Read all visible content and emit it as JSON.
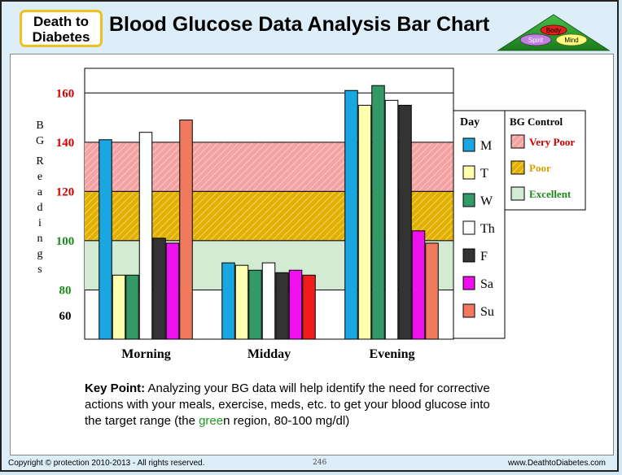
{
  "header": {
    "logo_line1": "Death to",
    "logo_line2": "Diabetes",
    "title": "Blood Glucose Data Analysis Bar Chart",
    "pyramid_labels": [
      "Body",
      "Spirit",
      "Mind"
    ]
  },
  "chart_data": {
    "type": "bar",
    "categories": [
      "Morning",
      "Midday",
      "Evening"
    ],
    "ylabel": "BG Readings",
    "ylim": [
      60,
      170
    ],
    "yticks": [
      {
        "label": "160",
        "value": 160,
        "color": "#cc0000"
      },
      {
        "label": "140",
        "value": 140,
        "color": "#cc0000"
      },
      {
        "label": "120",
        "value": 120,
        "color": "#cc0000"
      },
      {
        "label": "100",
        "value": 100,
        "color": "#1a8a1a"
      },
      {
        "label": "80",
        "value": 80,
        "color": "#1a8a1a"
      },
      {
        "label": "60",
        "value": 60,
        "color": "#000000"
      }
    ],
    "bands": [
      {
        "name": "Very Poor",
        "from": 120,
        "to": 140,
        "color": "#f4a3a3",
        "hatch": true
      },
      {
        "name": "Poor",
        "from": 100,
        "to": 120,
        "color": "#e2b100",
        "hatch": true
      },
      {
        "name": "Excellent",
        "from": 80,
        "to": 100,
        "color": "#d3ead3",
        "hatch": false
      }
    ],
    "series": [
      {
        "name": "M",
        "color": "#1aa6e0",
        "values": [
          141,
          91,
          161
        ]
      },
      {
        "name": "T",
        "color": "#ffffb0",
        "values": [
          86,
          90,
          155
        ]
      },
      {
        "name": "W",
        "color": "#339966",
        "values": [
          86,
          88,
          163
        ]
      },
      {
        "name": "Th",
        "color": "#ffffff",
        "values": [
          144,
          91,
          157
        ]
      },
      {
        "name": "F",
        "color": "#333333",
        "values": [
          101,
          87,
          155
        ]
      },
      {
        "name": "Sa",
        "color": "#ee11ee",
        "values": [
          99,
          88,
          104
        ]
      },
      {
        "name": "Su",
        "color": "#f07a5e",
        "values": [
          149,
          86,
          99
        ]
      }
    ],
    "legend_day_title": "Day",
    "legend_control_title": "BG Control",
    "legend_control_items": [
      {
        "label": "Very Poor",
        "color": "#f4a3a3",
        "text_color": "#cc0000"
      },
      {
        "label": "Poor",
        "color": "#e2b100",
        "text_color": "#d4a000"
      },
      {
        "label": "Excellent",
        "color": "#d3ead3",
        "text_color": "#1a8a1a"
      }
    ]
  },
  "key_point": {
    "label": "Key Point:",
    "text_before": " Analyzing your BG data will help identify the need for corrective actions with your meals, exercise, meds, etc. to get your blood glucose into the target range (the ",
    "green_word": "gree",
    "text_after": "n region, 80-100 mg/dl)"
  },
  "footer": {
    "copyright": "Copyright © protection 2010-2013 - All rights reserved.",
    "page": "246",
    "website": "www.DeathtoDiabetes.com"
  }
}
